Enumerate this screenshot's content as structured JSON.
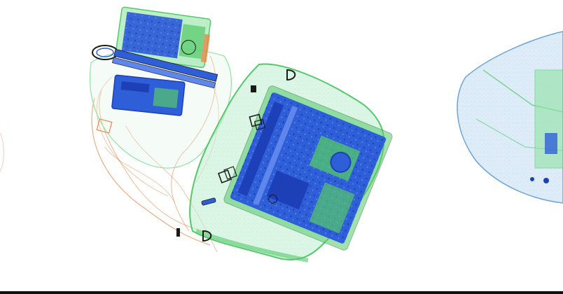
{
  "image": {
    "kind": "x-ray baggage scan",
    "background": "#ffffff",
    "palette": {
      "inorganic_blue": "#2f5fd8",
      "dense_blue": "#1d3fb8",
      "mixed_green": "#54c96a",
      "light_green": "#8fe3a4",
      "organic_orange": "#e8884a",
      "edge_dark": "#1a1a1a"
    },
    "objects": [
      {
        "name": "cable-bundle-bag"
      },
      {
        "name": "laptop-bag"
      },
      {
        "name": "round-bag-partial"
      }
    ]
  }
}
